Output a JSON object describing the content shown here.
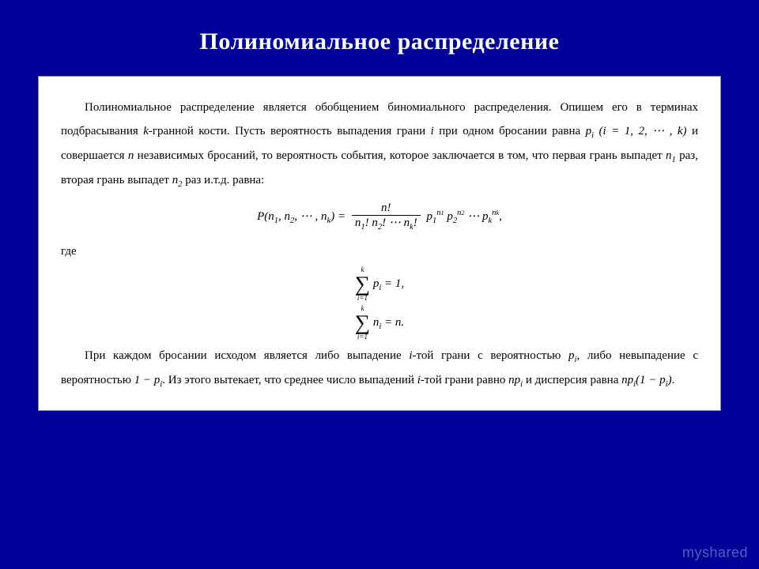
{
  "background_color": "#000099",
  "box_background": "#ffffff",
  "title": "Полиномиальное распределение",
  "para1_a": "Полиномиальное распределение является обобщением биномиального распределения. Опишем его в терминах подбрасывания ",
  "para1_b": "-гранной кости. Пусть вероятность выпадения грани ",
  "para1_c": " при одном бросании равна ",
  "para1_d": " и совершается ",
  "para1_e": " независимых бросаний, то вероятность события, которое заключается в том, что первая грань выпадет ",
  "para1_f": " раз, вторая грань выпадет ",
  "para1_g": " раз и.т.д. равна:",
  "math_k": "k",
  "math_i": "i",
  "math_n": "n",
  "math_pi": "p",
  "math_pi_sub": "i",
  "math_iparen": "(i = 1, 2, ⋯ , k)",
  "math_n1": "n",
  "math_n1_sub": "1",
  "math_n2": "n",
  "math_n2_sub": "2",
  "formula_lhs_a": "P(n",
  "formula_lhs_b": ", n",
  "formula_lhs_c": ", ⋯ , n",
  "formula_lhs_k_sub": "k",
  "formula_lhs_d": ") = ",
  "formula_num": "n!",
  "formula_den_a": "n",
  "formula_den_b": "! n",
  "formula_den_c": "! ⋯ n",
  "formula_den_d": "!",
  "formula_rhs_a": " p",
  "formula_rhs_b": " p",
  "formula_rhs_c": " ⋯ p",
  "formula_rhs_d": ",",
  "where": "где",
  "sum1_top": "k",
  "sum1_bot": "i=1",
  "sum1_body_a": " p",
  "sum1_body_b": " = 1,",
  "sum2_body_a": " n",
  "sum2_body_b": " = n.",
  "para2_a": "При каждом бросании исходом является либо выпадение ",
  "para2_b": "-той грани с вероятностью ",
  "para2_c": ", либо невыпадение с вероятностью ",
  "para2_d": ". Из этого вытекает, что среднее число выпадений ",
  "para2_e": "-той грани равно ",
  "para2_f": " и дисперсия равна ",
  "para2_g": ".",
  "math_1mp": "1 − p",
  "math_npi": "np",
  "math_var_a": "np",
  "math_var_b": "(1 − p",
  "math_var_c": ")",
  "watermark": "myshared"
}
